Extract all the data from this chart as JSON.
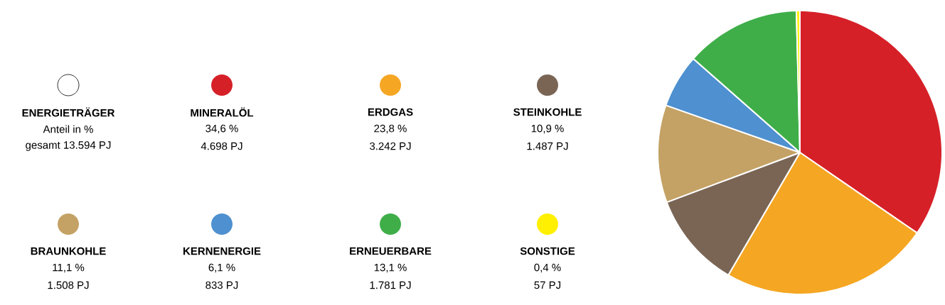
{
  "chart_data": {
    "type": "pie",
    "legend_title": "ENERGIETRÄGER",
    "subtitle": "Anteil in %",
    "categories": [
      "MINERALÖL",
      "ERDGAS",
      "STEINKOHLE",
      "BRAUNKOHLE",
      "KERNENERGIE",
      "ERNEUERBARE",
      "SONSTIGE"
    ],
    "values": [
      34.6,
      23.8,
      10.9,
      11.1,
      6.1,
      13.1,
      0.4
    ],
    "colors": [
      "#d62028",
      "#f5a623",
      "#7a6555",
      "#c4a265",
      "#4e90d0",
      "#3fae49",
      "#ffef00"
    ],
    "value_labels": [
      "34,6 %",
      "23,8 %",
      "10,9 %",
      "11,1 %",
      "6,1 %",
      "13,1 %",
      "0,4 %"
    ],
    "annotations": [
      "gesamt 13.594 PJ",
      "4.698 PJ",
      "3.242 PJ",
      "1.487 PJ",
      "1.508 PJ",
      "833 PJ",
      "1.781 PJ",
      "57 PJ"
    ],
    "legend": "left"
  }
}
